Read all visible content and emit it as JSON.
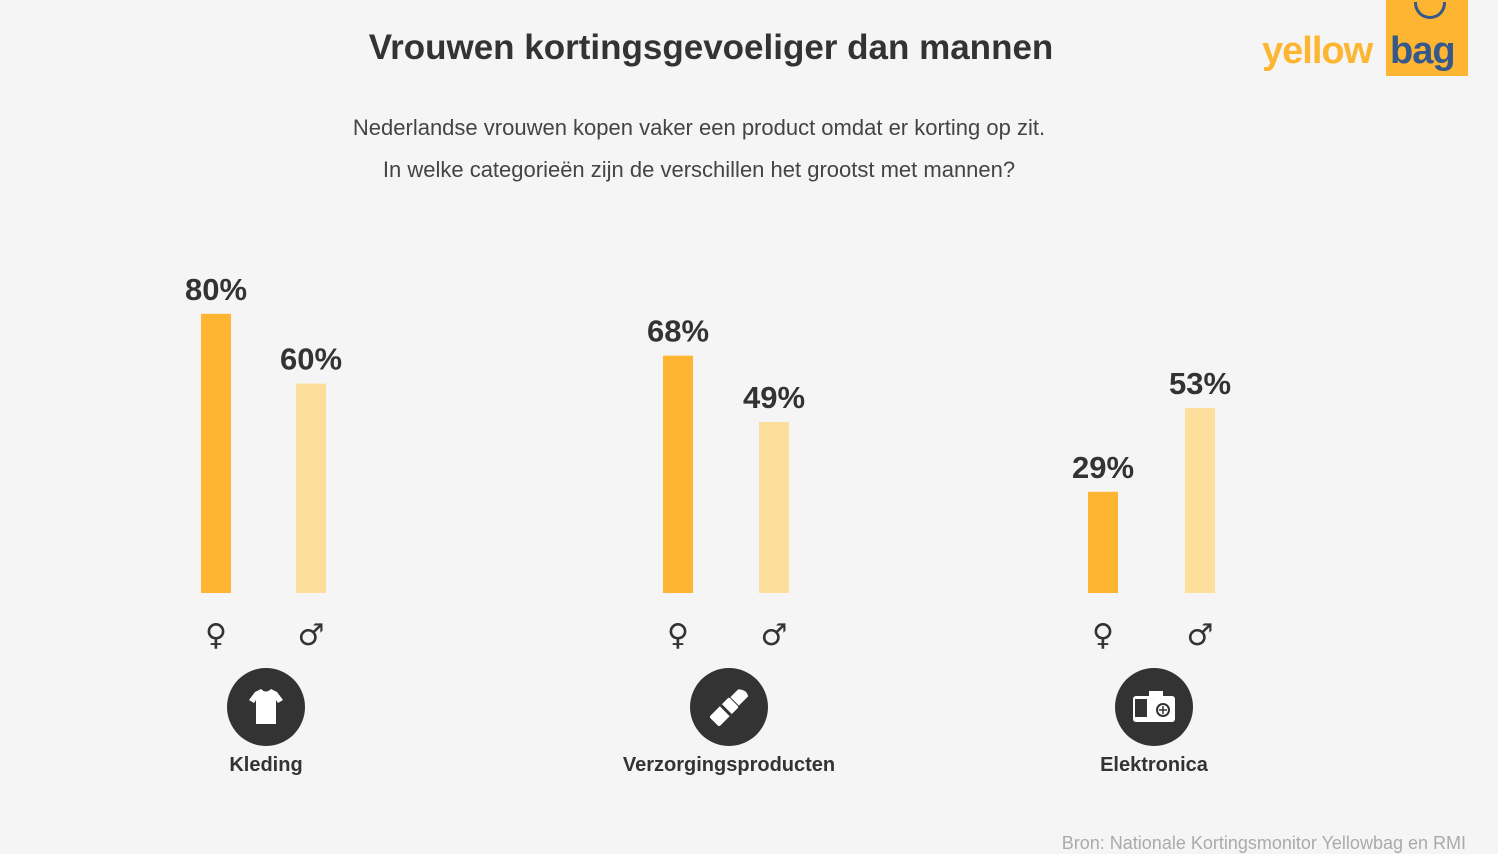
{
  "title": "Vrouwen kortingsgevoeliger dan mannen",
  "subtitle_lines": [
    "Nederlandse vrouwen kopen vaker een product omdat er korting op zit.",
    "In welke categorieën zijn de verschillen het grootst met mannen?"
  ],
  "logo": {
    "word1": "yellow",
    "word2": "bag"
  },
  "source": "Bron: Nationale Kortingsmonitor Yellowbag en RMI",
  "colors": {
    "female": "#fdb532",
    "male": "#fddf9b",
    "text": "#333333",
    "background": "#f5f5f5"
  },
  "chart_data": {
    "type": "bar",
    "title": "Vrouwen kortingsgevoeliger dan mannen",
    "categories": [
      "Kleding",
      "Verzorgingsproducten",
      "Elektronica"
    ],
    "category_icons": [
      "tshirt-icon",
      "lipstick-icon",
      "camera-icon"
    ],
    "series": [
      {
        "name": "vrouwen",
        "symbol": "♀",
        "values": [
          80,
          68,
          29
        ],
        "labels": [
          "80%",
          "68%",
          "29%"
        ]
      },
      {
        "name": "mannen",
        "symbol": "♂",
        "values": [
          60,
          49,
          53
        ],
        "labels": [
          "60%",
          "49%",
          "53%"
        ]
      }
    ],
    "ylim": [
      0,
      100
    ],
    "unit": "%"
  }
}
